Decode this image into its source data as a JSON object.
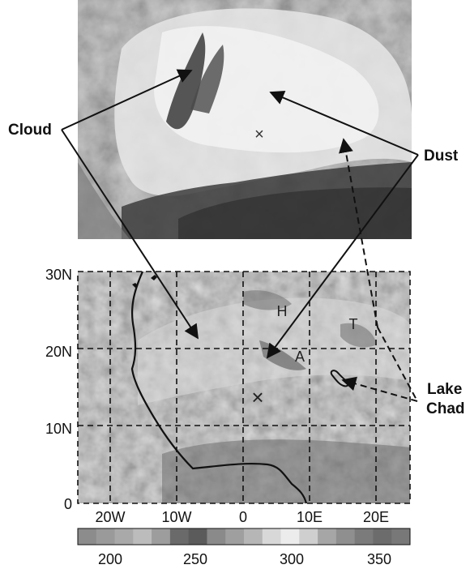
{
  "satellite_image": {
    "description_marks": {
      "cross": "×"
    }
  },
  "annotations": {
    "cloud_label": "Cloud",
    "dust_label": "Dust",
    "lake_label_line1": "Lake",
    "lake_label_line2": "Chad"
  },
  "map": {
    "latitude_ticks": [
      "30N",
      "20N",
      "10N",
      "0"
    ],
    "longitude_ticks": [
      "20W",
      "10W",
      "0",
      "10E",
      "20E"
    ],
    "letters": {
      "h": "H",
      "a": "A",
      "t": "T",
      "x": "×"
    }
  },
  "colorbar": {
    "ticks": [
      "200",
      "250",
      "300",
      "350"
    ],
    "swatches": [
      "#8c8c8c",
      "#9a9a9a",
      "#a9a9a9",
      "#bcbcbc",
      "#9d9d9d",
      "#6a6a6a",
      "#5b5b5b",
      "#8a8a8a",
      "#9f9f9f",
      "#b6b6b6",
      "#d8d8d8",
      "#ececec",
      "#cfcfcf",
      "#a6a6a6",
      "#8f8f8f",
      "#7b7b7b",
      "#6c6c6c",
      "#787878"
    ]
  },
  "colors": {
    "line": "#111111",
    "grid": "#111111"
  }
}
